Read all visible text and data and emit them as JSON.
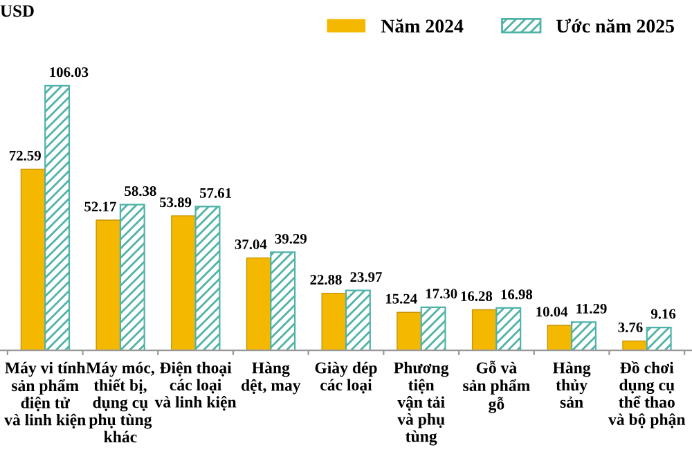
{
  "chart_data": {
    "type": "bar",
    "ylabel": "USD",
    "categories": [
      "Máy vi tính\nsản phẩm\nđiện tử\nvà linh kiện",
      "Máy móc,\nthiết bị,\ndụng cụ\nphụ tùng\nkhác",
      "Điện thoại\ncác loại\nvà linh kiện",
      "Hàng\ndệt, may",
      "Giày dép\ncác loại",
      "Phương\ntiện\nvận tải\nvà phụ\ntùng",
      "Gỗ và\nsản phẩm\ngỗ",
      "Hàng\nthủy\nsản",
      "Đồ chơi\ndụng cụ\nthể thao\nvà bộ phận"
    ],
    "series": [
      {
        "name": "Năm 2024",
        "color": "#f5b800",
        "values": [
          72.59,
          52.17,
          53.89,
          37.04,
          22.88,
          15.24,
          16.28,
          10.04,
          3.76
        ],
        "value_labels": [
          "72.59",
          "52.17",
          "53.89",
          "37.04",
          "22.88",
          "15.24",
          "16.28",
          "10.04",
          "3.76"
        ]
      },
      {
        "name": "Ước năm 2025",
        "color": "#4fb3a8",
        "values": [
          106.03,
          58.38,
          57.61,
          39.29,
          23.97,
          17.3,
          16.98,
          11.29,
          9.16
        ],
        "value_labels": [
          "106.03",
          "58.38",
          "57.61",
          "39.29",
          "23.97",
          "17.30",
          "16.98",
          "11.29",
          "9.16"
        ]
      }
    ],
    "legend": "top right",
    "grid": false
  }
}
